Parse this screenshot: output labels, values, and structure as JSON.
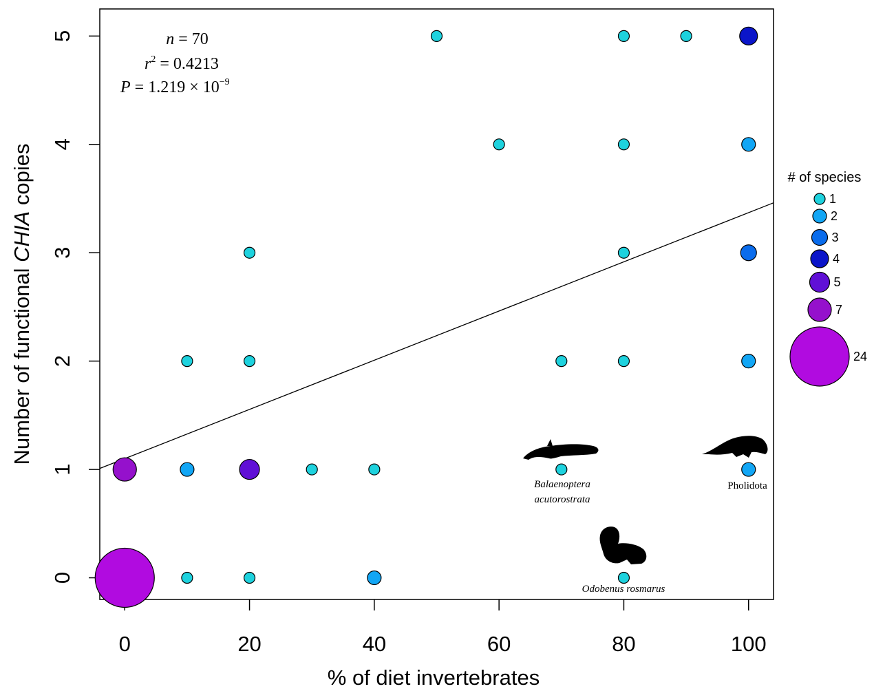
{
  "chart_data": {
    "type": "scatter",
    "title": "",
    "xlabel": "% of diet invertebrates",
    "ylabel_parts": [
      "Number of functional ",
      "CHIA",
      " copies"
    ],
    "xlim": [
      -4,
      104
    ],
    "ylim": [
      -0.2,
      5.25
    ],
    "x_ticks": [
      0,
      20,
      40,
      60,
      80,
      100
    ],
    "y_ticks": [
      0,
      1,
      2,
      3,
      4,
      5
    ],
    "regression": {
      "intercept": 1.1,
      "slope": 0.0227
    },
    "stats": {
      "n_label": "n",
      "n_value": " = 70",
      "r2_label": "r",
      "r2_sup": "2",
      "r2_value": " = 0.4213",
      "p_label": "P",
      "p_value": " = 1.219 × 10",
      "p_exp": "−9"
    },
    "legend": {
      "title": "# of species",
      "placement": "right",
      "entries": [
        {
          "label": "1",
          "count": 1,
          "color": "#1ed2de"
        },
        {
          "label": "2",
          "count": 2,
          "color": "#12a6f5"
        },
        {
          "label": "3",
          "count": 3,
          "color": "#0a6cec"
        },
        {
          "label": "4",
          "count": 4,
          "color": "#0b15c9"
        },
        {
          "label": "5",
          "count": 5,
          "color": "#6010d6"
        },
        {
          "label": "7",
          "count": 7,
          "color": "#9511cc"
        },
        {
          "label": "24",
          "count": 24,
          "color": "#b10be0"
        }
      ]
    },
    "points": [
      {
        "x": 0,
        "y": 0,
        "count": 24
      },
      {
        "x": 10,
        "y": 0,
        "count": 1
      },
      {
        "x": 20,
        "y": 0,
        "count": 1
      },
      {
        "x": 40,
        "y": 0,
        "count": 2
      },
      {
        "x": 80,
        "y": 0,
        "count": 1
      },
      {
        "x": 0,
        "y": 1,
        "count": 7
      },
      {
        "x": 10,
        "y": 1,
        "count": 2
      },
      {
        "x": 20,
        "y": 1,
        "count": 5
      },
      {
        "x": 30,
        "y": 1,
        "count": 1
      },
      {
        "x": 40,
        "y": 1,
        "count": 1
      },
      {
        "x": 70,
        "y": 1,
        "count": 1
      },
      {
        "x": 100,
        "y": 1,
        "count": 2
      },
      {
        "x": 10,
        "y": 2,
        "count": 1
      },
      {
        "x": 20,
        "y": 2,
        "count": 1
      },
      {
        "x": 70,
        "y": 2,
        "count": 1
      },
      {
        "x": 80,
        "y": 2,
        "count": 1
      },
      {
        "x": 100,
        "y": 2,
        "count": 2
      },
      {
        "x": 20,
        "y": 3,
        "count": 1
      },
      {
        "x": 80,
        "y": 3,
        "count": 1
      },
      {
        "x": 100,
        "y": 3,
        "count": 3
      },
      {
        "x": 60,
        "y": 4,
        "count": 1
      },
      {
        "x": 80,
        "y": 4,
        "count": 1
      },
      {
        "x": 100,
        "y": 4,
        "count": 2
      },
      {
        "x": 50,
        "y": 5,
        "count": 1
      },
      {
        "x": 80,
        "y": 5,
        "count": 1
      },
      {
        "x": 90,
        "y": 5,
        "count": 1
      },
      {
        "x": 100,
        "y": 5,
        "count": 4
      }
    ],
    "annotations": {
      "whale_line1": "Balaenoptera",
      "whale_line2": "acutorostrata",
      "walrus": "Odobenus rosmarus",
      "pangolin": "Pholidota"
    }
  }
}
